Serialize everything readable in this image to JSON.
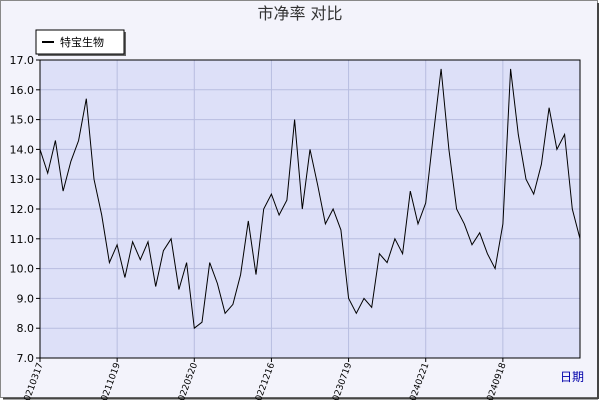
{
  "chart_data": {
    "type": "line",
    "title": "市净率  对比",
    "x_label": "日期",
    "categories": [
      "20210317",
      null,
      null,
      null,
      null,
      null,
      null,
      null,
      null,
      null,
      "20211019",
      null,
      null,
      null,
      null,
      null,
      null,
      null,
      null,
      null,
      "20220520",
      null,
      null,
      null,
      null,
      null,
      null,
      null,
      null,
      null,
      "20221216",
      null,
      null,
      null,
      null,
      null,
      null,
      null,
      null,
      null,
      "20230719",
      null,
      null,
      null,
      null,
      null,
      null,
      null,
      null,
      null,
      "20240221",
      null,
      null,
      null,
      null,
      null,
      null,
      null,
      null,
      null,
      "20240918",
      null,
      null,
      null,
      null,
      null,
      null,
      null,
      null,
      null,
      null
    ],
    "series": [
      {
        "name": "特宝生物",
        "color": "#000000",
        "values": [
          14.0,
          13.2,
          14.3,
          12.6,
          13.6,
          14.3,
          15.7,
          13.0,
          11.8,
          10.2,
          10.8,
          9.7,
          10.9,
          10.3,
          10.9,
          9.4,
          10.6,
          11.0,
          9.3,
          10.2,
          8.0,
          8.2,
          10.2,
          9.5,
          8.5,
          8.8,
          9.8,
          11.6,
          9.8,
          12.0,
          12.5,
          11.8,
          12.3,
          15.0,
          12.0,
          14.0,
          12.8,
          11.5,
          12.0,
          11.3,
          9.0,
          8.5,
          9.0,
          8.7,
          10.5,
          10.2,
          11.0,
          10.5,
          12.6,
          11.5,
          12.2,
          14.5,
          16.7,
          14.0,
          12.0,
          11.5,
          10.8,
          11.2,
          10.5,
          10.0,
          11.5,
          16.7,
          14.5,
          13.0,
          12.5,
          13.5,
          15.4,
          14.0,
          14.5,
          12.0,
          11.0
        ]
      }
    ],
    "ylim": [
      7,
      17
    ],
    "yticks": [
      {
        "value": 7,
        "label": "7.0"
      },
      {
        "value": 8,
        "label": "8.0"
      },
      {
        "value": 9,
        "label": "9.0"
      },
      {
        "value": 10,
        "label": "10.0"
      },
      {
        "value": 11,
        "label": "11.0"
      },
      {
        "value": 12,
        "label": "12.0"
      },
      {
        "value": 13,
        "label": "13.0"
      },
      {
        "value": 14,
        "label": "14.0"
      },
      {
        "value": 15,
        "label": "15.0"
      },
      {
        "value": 16,
        "label": "16.0"
      },
      {
        "value": 17,
        "label": "17.0"
      }
    ],
    "grid": true,
    "legend": "top-left"
  }
}
